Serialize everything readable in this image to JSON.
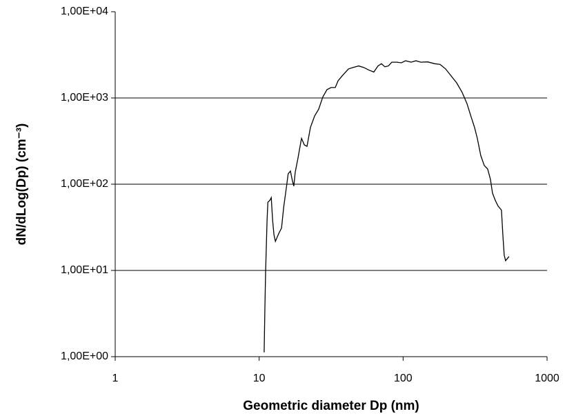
{
  "chart_data": {
    "type": "line",
    "x_label": "Geometric diameter Dp (nm)",
    "y_label": "dN/dLog(Dp) (cm⁻³)",
    "xscale": "log",
    "yscale": "log",
    "grid": true,
    "xlim": [
      1,
      1000
    ],
    "xticks": [
      1,
      10,
      100,
      1000
    ],
    "ylim": [
      1,
      10000
    ],
    "yticks": [
      {
        "value": 1,
        "label": "1,00E+00"
      },
      {
        "value": 10,
        "label": "1,00E+01"
      },
      {
        "value": 100,
        "label": "1,00E+02"
      },
      {
        "value": 1000,
        "label": "1,00E+03"
      },
      {
        "value": 10000,
        "label": "1,00E+04"
      }
    ],
    "series": [
      {
        "color": "#000000",
        "x": [
          10.83,
          10.95,
          11.08,
          11.35,
          11.49,
          11.87,
          12.13,
          12.4,
          12.67,
          12.96,
          13.7,
          14.3,
          14.8,
          15.5,
          15.9,
          16.5,
          17.0,
          17.4,
          17.8,
          18.6,
          19.5,
          19.7,
          20.6,
          21.5,
          22.7,
          24.3,
          25.9,
          27.7,
          29.6,
          31.6,
          33.8,
          35.3,
          37.7,
          39.4,
          41.7,
          45.0,
          49.1,
          53.1,
          58.0,
          62.6,
          66.9,
          70.7,
          74.7,
          79.0,
          83.4,
          90.1,
          97.4,
          104.0,
          113.6,
          122.8,
          132.6,
          148.1,
          165.4,
          180.6,
          197.3,
          215.6,
          235.4,
          257.2,
          277.8,
          296.9,
          313.6,
          327.8,
          346.4,
          366.0,
          386.8,
          404.2,
          417.8,
          436.7,
          456.4,
          482.3,
          493.1,
          504,
          515.2,
          544.5
        ],
        "values": [
          1.12,
          3.4,
          9.5,
          37.7,
          62,
          65,
          70,
          38,
          26,
          21.7,
          27,
          31,
          54,
          95,
          132,
          142,
          110,
          95,
          137,
          200,
          313,
          340,
          285,
          275,
          455,
          620,
          740,
          1030,
          1250,
          1320,
          1320,
          1580,
          1800,
          1950,
          2170,
          2260,
          2350,
          2260,
          2100,
          2000,
          2350,
          2500,
          2300,
          2350,
          2600,
          2600,
          2560,
          2700,
          2600,
          2700,
          2600,
          2620,
          2500,
          2450,
          2170,
          1800,
          1500,
          1160,
          860,
          600,
          455,
          340,
          215,
          165,
          150,
          114,
          79,
          65,
          56,
          50,
          26,
          15,
          13,
          14.5
        ]
      }
    ]
  }
}
